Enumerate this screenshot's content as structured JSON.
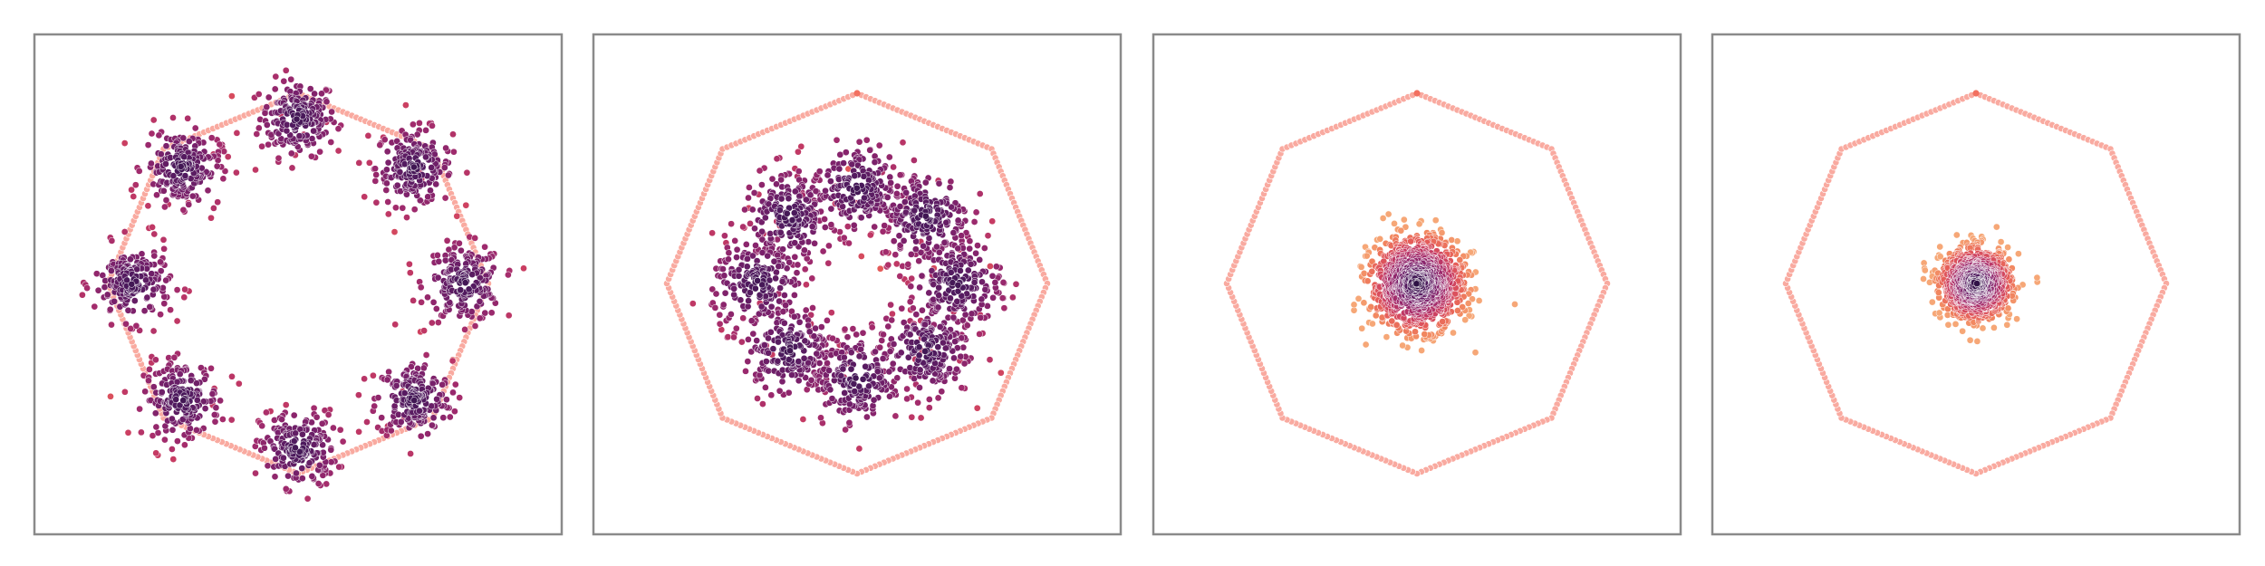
{
  "chart_data": [
    {
      "type": "scatter",
      "title": "",
      "xlabel": "",
      "ylabel": "",
      "xlim": [
        -1.3,
        1.3
      ],
      "ylim": [
        -1.3,
        1.3
      ],
      "grid": false,
      "legend": "none",
      "octagon_vertices": [
        [
          0,
          1
        ],
        [
          0.7071,
          0.7071
        ],
        [
          1,
          0
        ],
        [
          0.7071,
          -0.7071
        ],
        [
          0,
          -1
        ],
        [
          -0.7071,
          -0.7071
        ],
        [
          -1,
          0
        ],
        [
          -0.7071,
          0.7071
        ]
      ],
      "cluster_centers": [
        [
          0,
          0.87
        ],
        [
          0.61,
          0.61
        ],
        [
          0.87,
          0
        ],
        [
          0.61,
          -0.61
        ],
        [
          0,
          -0.87
        ],
        [
          -0.61,
          -0.61
        ],
        [
          -0.87,
          0
        ],
        [
          -0.61,
          0.61
        ]
      ],
      "cluster_spread": 0.1,
      "points_per_cluster": 190
    },
    {
      "type": "scatter",
      "title": "",
      "xlabel": "",
      "ylabel": "",
      "xlim": [
        -1.3,
        1.3
      ],
      "ylim": [
        -1.3,
        1.3
      ],
      "grid": false,
      "legend": "none",
      "octagon_vertices": [
        [
          0,
          1
        ],
        [
          0.7071,
          0.7071
        ],
        [
          1,
          0
        ],
        [
          0.7071,
          -0.7071
        ],
        [
          0,
          -1
        ],
        [
          -0.7071,
          -0.7071
        ],
        [
          -1,
          0
        ],
        [
          -0.7071,
          0.7071
        ]
      ],
      "cluster_centers": [
        [
          0,
          0.5
        ],
        [
          0.36,
          0.35
        ],
        [
          0.52,
          0
        ],
        [
          0.36,
          -0.35
        ],
        [
          0,
          -0.5
        ],
        [
          -0.36,
          -0.35
        ],
        [
          -0.52,
          0
        ],
        [
          -0.36,
          0.35
        ]
      ],
      "cluster_spread": 0.12,
      "points_per_cluster": 190
    },
    {
      "type": "scatter",
      "title": "",
      "xlabel": "",
      "ylabel": "",
      "xlim": [
        -1.3,
        1.3
      ],
      "ylim": [
        -1.3,
        1.3
      ],
      "grid": false,
      "legend": "none",
      "octagon_vertices": [
        [
          0,
          1
        ],
        [
          0.7071,
          0.7071
        ],
        [
          1,
          0
        ],
        [
          0.7071,
          -0.7071
        ],
        [
          0,
          -1
        ],
        [
          -0.7071,
          -0.7071
        ],
        [
          -1,
          0
        ],
        [
          -0.7071,
          0.7071
        ]
      ],
      "cluster_centers": [
        [
          0,
          0
        ]
      ],
      "cluster_spread": 0.12,
      "points_per_cluster": 1100
    },
    {
      "type": "scatter",
      "title": "",
      "xlabel": "",
      "ylabel": "",
      "xlim": [
        -1.3,
        1.3
      ],
      "ylim": [
        -1.3,
        1.3
      ],
      "grid": false,
      "legend": "none",
      "octagon_vertices": [
        [
          0,
          1
        ],
        [
          0.7071,
          0.7071
        ],
        [
          1,
          0
        ],
        [
          0.7071,
          -0.7071
        ],
        [
          0,
          -1
        ],
        [
          -0.7071,
          -0.7071
        ],
        [
          -1,
          0
        ],
        [
          -0.7071,
          0.7071
        ]
      ],
      "cluster_centers": [
        [
          0,
          0
        ]
      ],
      "cluster_spread": 0.09,
      "points_per_cluster": 1000
    }
  ],
  "colors": {
    "octagon_marker": "#f9aaa0",
    "octagon_vertex": "#f27060",
    "frame": "#8a8a8a",
    "colormap": [
      "#2c1143",
      "#4e1a5e",
      "#78206b",
      "#a02b6d",
      "#c83c63",
      "#e55c59",
      "#f1845e",
      "#f6a777"
    ]
  }
}
